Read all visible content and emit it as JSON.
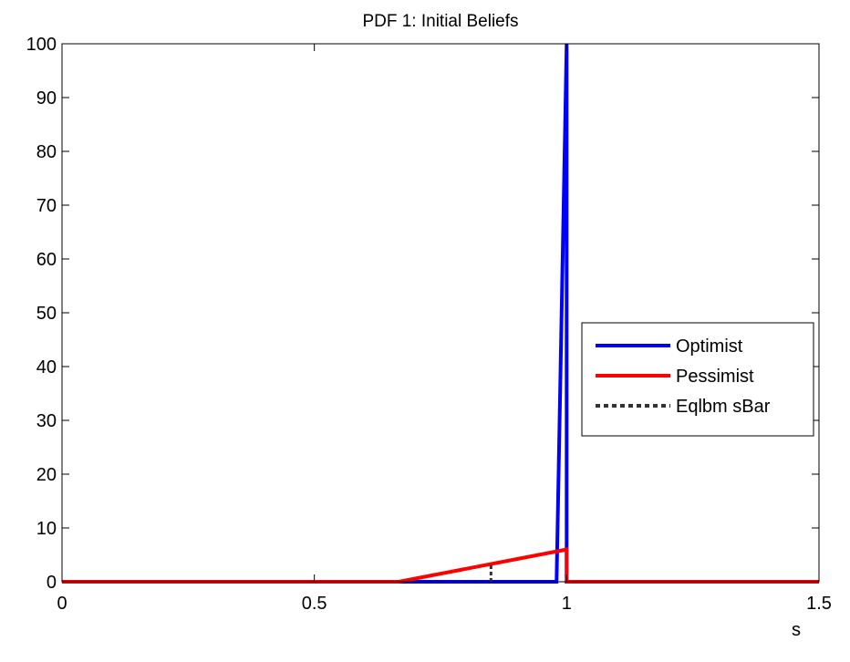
{
  "chart_data": {
    "type": "line",
    "title": "PDF 1: Initial Beliefs",
    "xlabel": "s",
    "ylabel": "",
    "xlim": [
      0,
      1.5
    ],
    "ylim": [
      0,
      100
    ],
    "xticks": [
      {
        "value": 0,
        "label": "0"
      },
      {
        "value": 0.5,
        "label": "0.5"
      },
      {
        "value": 1,
        "label": "1"
      },
      {
        "value": 1.5,
        "label": "1.5"
      }
    ],
    "yticks": [
      {
        "value": 0,
        "label": "0"
      },
      {
        "value": 10,
        "label": "10"
      },
      {
        "value": 20,
        "label": "20"
      },
      {
        "value": 30,
        "label": "30"
      },
      {
        "value": 40,
        "label": "40"
      },
      {
        "value": 50,
        "label": "50"
      },
      {
        "value": 60,
        "label": "60"
      },
      {
        "value": 70,
        "label": "70"
      },
      {
        "value": 80,
        "label": "80"
      },
      {
        "value": 90,
        "label": "90"
      },
      {
        "value": 100,
        "label": "100"
      }
    ],
    "grid": false,
    "legend_position": "right",
    "series": [
      {
        "name": "Optimist",
        "color": "#0000ff",
        "style": "solid",
        "points": [
          [
            0,
            0
          ],
          [
            0.98,
            0
          ],
          [
            1.0,
            100
          ],
          [
            1.0,
            0
          ],
          [
            1.5,
            0
          ]
        ]
      },
      {
        "name": "Pessimist",
        "color": "#ff0000",
        "style": "solid",
        "points": [
          [
            0,
            0
          ],
          [
            0.667,
            0
          ],
          [
            1.0,
            6
          ],
          [
            1.0,
            0
          ],
          [
            1.5,
            0
          ]
        ]
      },
      {
        "name": "Eqlbm sBar",
        "color": "#333333",
        "style": "dotted",
        "points": [
          [
            0.85,
            0
          ],
          [
            0.85,
            3.5
          ]
        ]
      }
    ]
  }
}
